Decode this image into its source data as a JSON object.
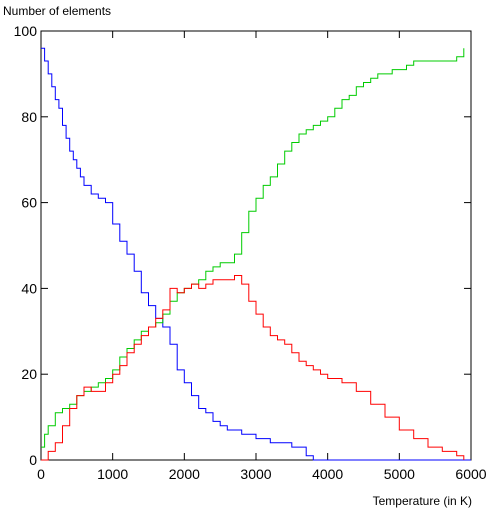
{
  "chart_data": {
    "type": "line",
    "title": "",
    "xlabel": "Temperature (in K)",
    "ylabel": "Number of elements",
    "xlim": [
      0,
      6000
    ],
    "ylim": [
      0,
      100
    ],
    "xticks": [
      0,
      1000,
      2000,
      3000,
      4000,
      5000,
      6000
    ],
    "yticks": [
      0,
      20,
      40,
      60,
      80,
      100
    ],
    "grid": false,
    "legend": "none",
    "series": [
      {
        "color": "#0000ff",
        "x": [
          0,
          50,
          100,
          150,
          200,
          250,
          300,
          350,
          400,
          450,
          500,
          550,
          600,
          700,
          800,
          900,
          1000,
          1100,
          1200,
          1300,
          1400,
          1500,
          1600,
          1700,
          1800,
          1900,
          2000,
          2100,
          2200,
          2300,
          2400,
          2500,
          2600,
          2800,
          3000,
          3200,
          3500,
          3700,
          3800,
          4000,
          6000
        ],
        "y": [
          96,
          93,
          90,
          87,
          84,
          82,
          78,
          75,
          72,
          70,
          68,
          66,
          64,
          62,
          61,
          60,
          55,
          51,
          48,
          44,
          39,
          36,
          33,
          31,
          27,
          21,
          18,
          15,
          12,
          11,
          9,
          8,
          7,
          6,
          5,
          4,
          3,
          1,
          0,
          0,
          0
        ]
      },
      {
        "color": "#00cc00",
        "x": [
          0,
          50,
          100,
          200,
          300,
          400,
          500,
          600,
          700,
          800,
          900,
          1000,
          1100,
          1200,
          1300,
          1400,
          1500,
          1600,
          1700,
          1800,
          1900,
          2000,
          2100,
          2200,
          2300,
          2400,
          2500,
          2600,
          2700,
          2800,
          2900,
          3000,
          3100,
          3200,
          3300,
          3400,
          3500,
          3600,
          3700,
          3800,
          3900,
          4000,
          4100,
          4200,
          4300,
          4400,
          4500,
          4600,
          4700,
          4800,
          4900,
          5000,
          5100,
          5200,
          5400,
          5600,
          5800,
          5900
        ],
        "y": [
          3,
          6,
          8,
          11,
          12,
          13,
          15,
          16,
          17,
          18,
          19,
          21,
          24,
          26,
          28,
          30,
          31,
          32,
          34,
          37,
          39,
          40,
          41,
          42,
          44,
          45,
          46,
          46,
          48,
          53,
          58,
          61,
          64,
          66,
          69,
          72,
          74,
          76,
          77,
          78,
          79,
          80,
          82,
          84,
          85,
          87,
          88,
          89,
          90,
          90,
          91,
          91,
          92,
          93,
          93,
          93,
          94,
          96
        ]
      },
      {
        "color": "#ff0000",
        "x": [
          0,
          100,
          200,
          300,
          400,
          500,
          600,
          700,
          800,
          900,
          1000,
          1100,
          1200,
          1300,
          1400,
          1500,
          1600,
          1700,
          1800,
          1900,
          2000,
          2100,
          2200,
          2300,
          2400,
          2500,
          2600,
          2700,
          2800,
          2900,
          3000,
          3100,
          3200,
          3300,
          3400,
          3500,
          3600,
          3700,
          3800,
          3900,
          4000,
          4200,
          4400,
          4600,
          4800,
          5000,
          5200,
          5400,
          5600,
          5800,
          5900
        ],
        "y": [
          0,
          2,
          4,
          8,
          12,
          15,
          17,
          16,
          16,
          18,
          20,
          22,
          25,
          27,
          29,
          31,
          33,
          35,
          40,
          39,
          40,
          41,
          40,
          41,
          42,
          42,
          42,
          43,
          41,
          37,
          34,
          31,
          29,
          28,
          27,
          25,
          23,
          22,
          21,
          20,
          19,
          18,
          16,
          13,
          10,
          7,
          5,
          3,
          2,
          1,
          0
        ]
      }
    ]
  }
}
